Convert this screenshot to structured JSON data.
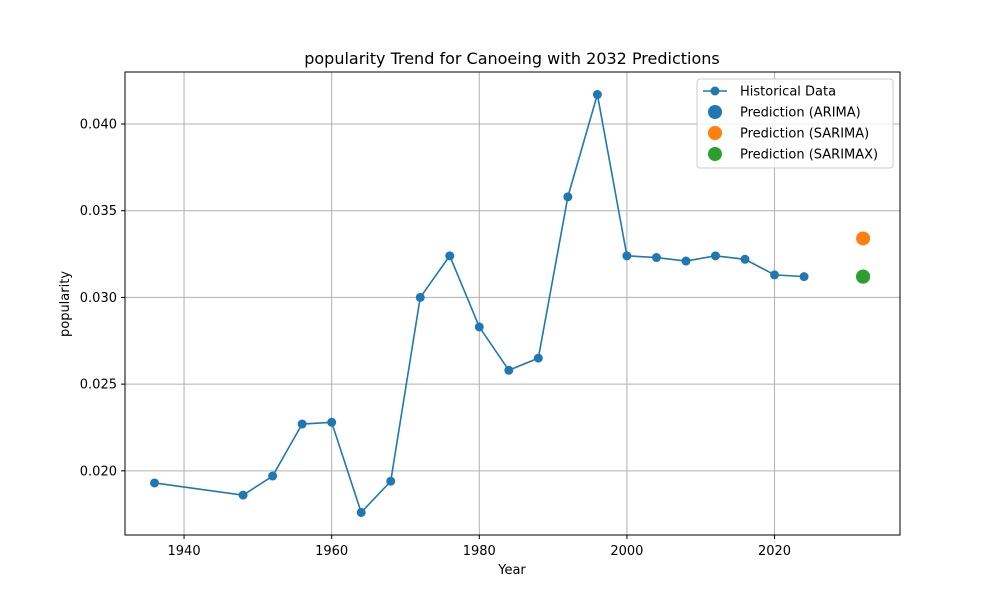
{
  "chart_data": {
    "type": "line",
    "title": "popularity Trend for Canoeing with 2032 Predictions",
    "xlabel": "Year",
    "ylabel": "popularity",
    "xlim": [
      1932,
      2037
    ],
    "ylim": [
      0.0163,
      0.043
    ],
    "grid": true,
    "legend_position": "top-right",
    "x_ticks": [
      1940,
      1960,
      1980,
      2000,
      2020
    ],
    "x_tick_labels": [
      "1940",
      "1960",
      "1980",
      "2000",
      "2020"
    ],
    "y_ticks": [
      0.02,
      0.025,
      0.03,
      0.035,
      0.04
    ],
    "y_tick_labels": [
      "0.020",
      "0.025",
      "0.030",
      "0.035",
      "0.040"
    ],
    "series": [
      {
        "name": "Historical Data",
        "kind": "line-marker",
        "color": "#1f77b4",
        "x": [
          1936,
          1948,
          1952,
          1956,
          1960,
          1964,
          1968,
          1972,
          1976,
          1980,
          1984,
          1988,
          1992,
          1996,
          2000,
          2004,
          2008,
          2012,
          2016,
          2020,
          2024
        ],
        "y": [
          0.0193,
          0.0186,
          0.0197,
          0.0227,
          0.0228,
          0.0176,
          0.0194,
          0.03,
          0.0324,
          0.0283,
          0.0258,
          0.0265,
          0.0358,
          0.0417,
          0.0324,
          0.0323,
          0.0321,
          0.0324,
          0.0322,
          0.0313,
          0.0312
        ]
      },
      {
        "name": "Prediction (ARIMA)",
        "kind": "point",
        "color": "#1f77b4",
        "x": [
          2032
        ],
        "y": [
          0.0312
        ]
      },
      {
        "name": "Prediction (SARIMA)",
        "kind": "point",
        "color": "#ff7f0e",
        "x": [
          2032
        ],
        "y": [
          0.0334
        ]
      },
      {
        "name": "Prediction (SARIMAX)",
        "kind": "point",
        "color": "#2ca02c",
        "x": [
          2032
        ],
        "y": [
          0.0312
        ]
      }
    ]
  }
}
